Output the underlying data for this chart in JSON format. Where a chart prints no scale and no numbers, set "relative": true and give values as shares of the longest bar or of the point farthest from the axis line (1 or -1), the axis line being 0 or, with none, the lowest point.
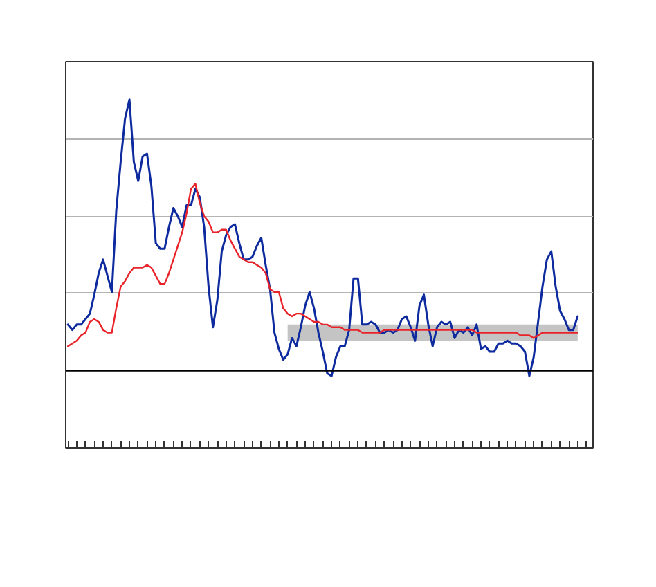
{
  "chart_data": {
    "type": "line",
    "relative": true,
    "grid": "y",
    "categories": [
      null,
      null,
      null,
      null,
      null,
      null,
      null,
      null,
      null,
      null,
      null,
      null,
      null,
      null,
      null,
      null,
      null,
      null,
      null,
      null,
      null,
      null,
      null,
      null,
      null,
      null,
      null,
      null,
      null,
      null,
      null,
      null,
      null,
      null,
      null,
      null,
      null,
      null,
      null,
      null,
      null,
      null,
      null,
      null,
      null,
      null,
      null,
      null,
      null,
      null,
      null,
      null,
      null,
      null,
      null,
      null,
      null,
      null,
      null,
      null,
      null,
      null,
      null,
      null,
      null,
      null,
      null,
      null,
      null,
      null,
      null,
      null,
      null,
      null,
      null,
      null,
      null,
      null,
      null,
      null,
      null,
      null,
      null,
      null,
      null,
      null,
      null,
      null,
      null,
      null,
      null,
      null,
      null,
      null,
      null,
      null,
      null,
      null,
      null,
      null,
      null,
      null,
      null,
      null,
      null,
      null,
      null,
      null,
      null,
      null,
      null,
      null,
      null,
      null,
      null,
      null,
      null,
      null,
      null,
      null
    ],
    "series": [
      {
        "color": "#0d2a9e",
        "values": [
          0.17,
          0.15,
          0.17,
          0.17,
          0.19,
          0.21,
          0.28,
          0.36,
          0.41,
          0.35,
          0.29,
          0.59,
          0.77,
          0.93,
          1.0,
          0.77,
          0.7,
          0.79,
          0.8,
          0.68,
          0.47,
          0.45,
          0.45,
          0.53,
          0.6,
          0.57,
          0.53,
          0.61,
          0.61,
          0.67,
          0.64,
          0.53,
          0.31,
          0.16,
          0.26,
          0.44,
          0.5,
          0.53,
          0.54,
          0.47,
          0.41,
          0.41,
          0.42,
          0.46,
          0.49,
          0.39,
          0.3,
          0.14,
          0.08,
          0.04,
          0.06,
          0.12,
          0.09,
          0.16,
          0.24,
          0.29,
          0.23,
          0.14,
          0.07,
          -0.01,
          -0.02,
          0.05,
          0.09,
          0.09,
          0.15,
          0.34,
          0.34,
          0.17,
          0.17,
          0.18,
          0.17,
          0.14,
          0.14,
          0.15,
          0.14,
          0.15,
          0.19,
          0.2,
          0.16,
          0.11,
          0.24,
          0.28,
          0.17,
          0.09,
          0.16,
          0.18,
          0.17,
          0.18,
          0.12,
          0.15,
          0.14,
          0.16,
          0.13,
          0.17,
          0.08,
          0.09,
          0.07,
          0.07,
          0.1,
          0.1,
          0.11,
          0.1,
          0.1,
          0.09,
          0.07,
          -0.02,
          0.05,
          0.18,
          0.31,
          0.41,
          0.44,
          0.31,
          0.22,
          0.19,
          0.15,
          0.15,
          0.2,
          null,
          null,
          null
        ]
      },
      {
        "color": "#e8232a",
        "values": [
          0.09,
          0.1,
          0.11,
          0.13,
          0.14,
          0.18,
          0.19,
          0.18,
          0.15,
          0.14,
          0.14,
          0.23,
          0.31,
          0.33,
          0.36,
          0.38,
          0.38,
          0.38,
          0.39,
          0.38,
          0.35,
          0.32,
          0.32,
          0.36,
          0.41,
          0.46,
          0.51,
          0.58,
          0.67,
          0.69,
          0.62,
          0.57,
          0.55,
          0.51,
          0.51,
          0.52,
          0.52,
          0.48,
          0.45,
          0.42,
          0.41,
          0.4,
          0.4,
          0.39,
          0.38,
          0.36,
          0.3,
          0.29,
          0.29,
          0.23,
          0.21,
          0.2,
          0.21,
          0.21,
          0.2,
          0.19,
          0.18,
          0.18,
          0.17,
          0.17,
          0.16,
          0.16,
          0.16,
          0.15,
          0.15,
          0.15,
          0.15,
          0.14,
          0.14,
          0.14,
          0.14,
          0.14,
          0.15,
          0.15,
          0.15,
          0.15,
          0.15,
          0.15,
          0.15,
          0.15,
          0.15,
          0.15,
          0.15,
          0.15,
          0.15,
          0.15,
          0.15,
          0.15,
          0.15,
          0.15,
          0.15,
          0.15,
          0.15,
          0.14,
          0.14,
          0.14,
          0.14,
          0.14,
          0.14,
          0.14,
          0.14,
          0.14,
          0.14,
          0.13,
          0.13,
          0.13,
          0.12,
          0.13,
          0.14,
          0.14,
          0.14,
          0.14,
          0.14,
          0.14,
          0.14,
          0.14,
          0.14,
          null,
          null,
          null
        ],
        "lower": [
          null,
          null,
          null,
          null,
          null,
          null,
          null,
          null,
          null,
          null,
          null,
          null,
          null,
          null,
          null,
          null,
          null,
          null,
          null,
          null,
          null,
          null,
          null,
          null,
          null,
          null,
          null,
          null,
          null,
          null,
          null,
          null,
          null,
          null,
          null,
          null,
          null,
          null,
          null,
          null,
          null,
          null,
          null,
          null,
          null,
          null,
          null,
          null,
          null,
          null,
          0.11,
          0.11,
          0.11,
          0.11,
          0.11,
          0.11,
          0.11,
          0.11,
          0.11,
          0.11,
          0.11,
          0.11,
          0.11,
          0.11,
          0.11,
          0.11,
          0.11,
          0.11,
          0.11,
          0.11,
          0.11,
          0.11,
          0.11,
          0.11,
          0.11,
          0.11,
          0.11,
          0.11,
          0.11,
          0.11,
          0.11,
          0.11,
          0.11,
          0.11,
          0.11,
          0.11,
          0.11,
          0.11,
          0.11,
          0.11,
          0.11,
          0.11,
          0.11,
          0.11,
          0.11,
          0.11,
          0.11,
          0.11,
          0.11,
          0.11,
          0.11,
          0.11,
          0.11,
          0.11,
          0.11,
          0.11,
          0.11,
          0.11,
          0.11,
          0.11,
          0.11,
          0.11,
          0.11,
          0.11,
          0.11,
          0.11,
          0.11,
          null,
          null,
          null
        ],
        "upper": [
          null,
          null,
          null,
          null,
          null,
          null,
          null,
          null,
          null,
          null,
          null,
          null,
          null,
          null,
          null,
          null,
          null,
          null,
          null,
          null,
          null,
          null,
          null,
          null,
          null,
          null,
          null,
          null,
          null,
          null,
          null,
          null,
          null,
          null,
          null,
          null,
          null,
          null,
          null,
          null,
          null,
          null,
          null,
          null,
          null,
          null,
          null,
          null,
          null,
          null,
          0.17,
          0.17,
          0.17,
          0.17,
          0.17,
          0.17,
          0.17,
          0.17,
          0.17,
          0.17,
          0.17,
          0.17,
          0.17,
          0.17,
          0.17,
          0.17,
          0.17,
          0.17,
          0.17,
          0.17,
          0.17,
          0.17,
          0.17,
          0.17,
          0.17,
          0.17,
          0.17,
          0.17,
          0.17,
          0.17,
          0.17,
          0.17,
          0.17,
          0.17,
          0.17,
          0.17,
          0.17,
          0.17,
          0.17,
          0.17,
          0.17,
          0.17,
          0.17,
          0.17,
          0.17,
          0.17,
          0.17,
          0.17,
          0.17,
          0.17,
          0.17,
          0.17,
          0.17,
          0.17,
          0.17,
          0.17,
          0.17,
          0.17,
          0.17,
          0.17,
          0.17,
          0.17,
          0.17,
          0.17,
          0.17,
          0.17,
          0.17,
          null,
          null,
          null
        ]
      }
    ]
  }
}
